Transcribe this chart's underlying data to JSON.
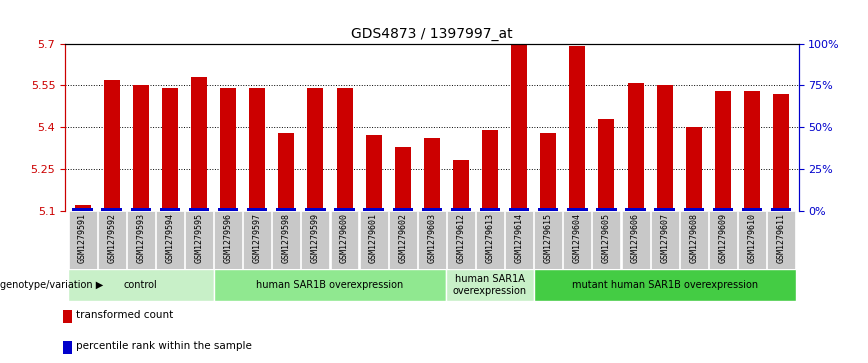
{
  "title": "GDS4873 / 1397997_at",
  "samples": [
    "GSM1279591",
    "GSM1279592",
    "GSM1279593",
    "GSM1279594",
    "GSM1279595",
    "GSM1279596",
    "GSM1279597",
    "GSM1279598",
    "GSM1279599",
    "GSM1279600",
    "GSM1279601",
    "GSM1279602",
    "GSM1279603",
    "GSM1279612",
    "GSM1279613",
    "GSM1279614",
    "GSM1279615",
    "GSM1279604",
    "GSM1279605",
    "GSM1279606",
    "GSM1279607",
    "GSM1279608",
    "GSM1279609",
    "GSM1279610",
    "GSM1279611"
  ],
  "values": [
    5.12,
    5.57,
    5.55,
    5.54,
    5.58,
    5.54,
    5.54,
    5.38,
    5.54,
    5.54,
    5.37,
    5.33,
    5.36,
    5.28,
    5.39,
    5.7,
    5.38,
    5.69,
    5.43,
    5.56,
    5.55,
    5.4,
    5.53,
    5.53,
    5.52
  ],
  "groups": [
    {
      "label": "control",
      "start": 0,
      "end": 4,
      "color": "#c8f0c8"
    },
    {
      "label": "human SAR1B overexpression",
      "start": 5,
      "end": 12,
      "color": "#90e890"
    },
    {
      "label": "human SAR1A\noverexpression",
      "start": 13,
      "end": 15,
      "color": "#c8f0c8"
    },
    {
      "label": "mutant human SAR1B overexpression",
      "start": 16,
      "end": 24,
      "color": "#44cc44"
    }
  ],
  "ylim": [
    5.1,
    5.7
  ],
  "yticks": [
    5.1,
    5.25,
    5.4,
    5.55,
    5.7
  ],
  "right_yticks": [
    0,
    25,
    50,
    75,
    100
  ],
  "right_yticklabels": [
    "0%",
    "25%",
    "50%",
    "75%",
    "100%"
  ],
  "bar_color": "#cc0000",
  "percentile_color": "#0000cc",
  "left_tick_color": "#cc0000",
  "right_tick_color": "#0000cc",
  "sample_bg": "#c8c8c8",
  "genotype_label": "genotype/variation",
  "legend_items": [
    {
      "label": "transformed count",
      "color": "#cc0000"
    },
    {
      "label": "percentile rank within the sample",
      "color": "#0000cc"
    }
  ]
}
